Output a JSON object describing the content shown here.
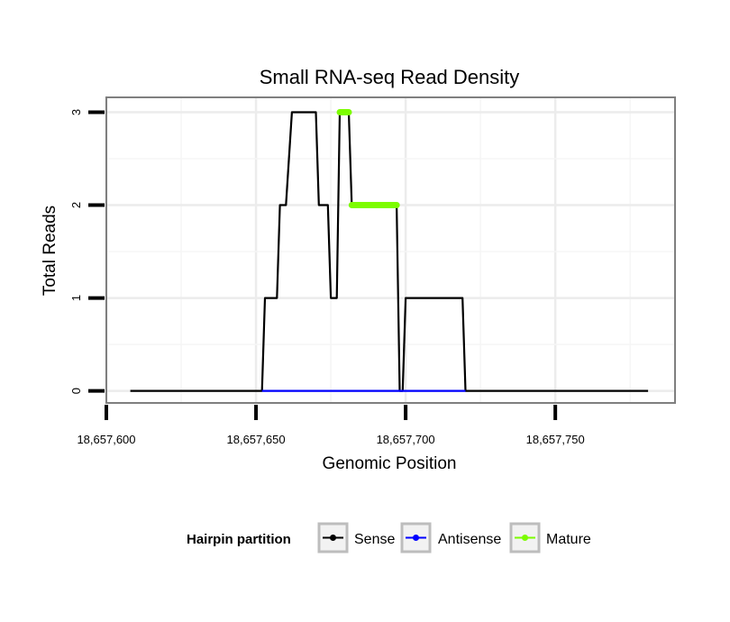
{
  "chart_data": {
    "type": "line",
    "title": "Small RNA-seq Read Density",
    "xlabel": "Genomic Position",
    "ylabel": "Total Reads",
    "xlim": [
      18657600,
      18657790
    ],
    "ylim": [
      -0.13,
      3.16
    ],
    "x_ticks": [
      18657600,
      18657650,
      18657700,
      18657750
    ],
    "x_tick_labels": [
      "18,657,600",
      "18,657,650",
      "18,657,700",
      "18,657,750"
    ],
    "y_ticks": [
      0,
      1,
      2,
      3
    ],
    "y_tick_labels": [
      "0",
      "1",
      "2",
      "3"
    ],
    "grid": true,
    "legend": {
      "title": "Hairpin partition",
      "position": "bottom",
      "entries": [
        "Sense",
        "Antisense",
        "Mature"
      ]
    },
    "series": [
      {
        "name": "Sense",
        "color": "#000000",
        "points": [
          [
            18657608,
            0
          ],
          [
            18657652,
            0
          ],
          [
            18657653,
            1
          ],
          [
            18657657,
            1
          ],
          [
            18657658,
            2
          ],
          [
            18657660,
            2
          ],
          [
            18657662,
            3
          ],
          [
            18657670,
            3
          ],
          [
            18657671,
            2
          ],
          [
            18657674,
            2
          ],
          [
            18657675,
            1
          ],
          [
            18657677,
            1
          ],
          [
            18657678,
            3
          ],
          [
            18657681,
            3
          ],
          [
            18657682,
            2
          ],
          [
            18657697,
            2
          ],
          [
            18657698,
            0
          ],
          [
            18657699,
            0
          ],
          [
            18657700,
            1
          ],
          [
            18657719,
            1
          ],
          [
            18657720,
            0
          ],
          [
            18657781,
            0
          ]
        ]
      },
      {
        "name": "Antisense",
        "color": "#0000ff",
        "points": [
          [
            18657652,
            0
          ],
          [
            18657720,
            0
          ]
        ]
      },
      {
        "name": "Mature",
        "color": "#7cfc00",
        "segments": [
          {
            "x": [
              18657678,
              18657681
            ],
            "y": 3
          },
          {
            "x": [
              18657682,
              18657697
            ],
            "y": 2
          }
        ]
      }
    ]
  }
}
